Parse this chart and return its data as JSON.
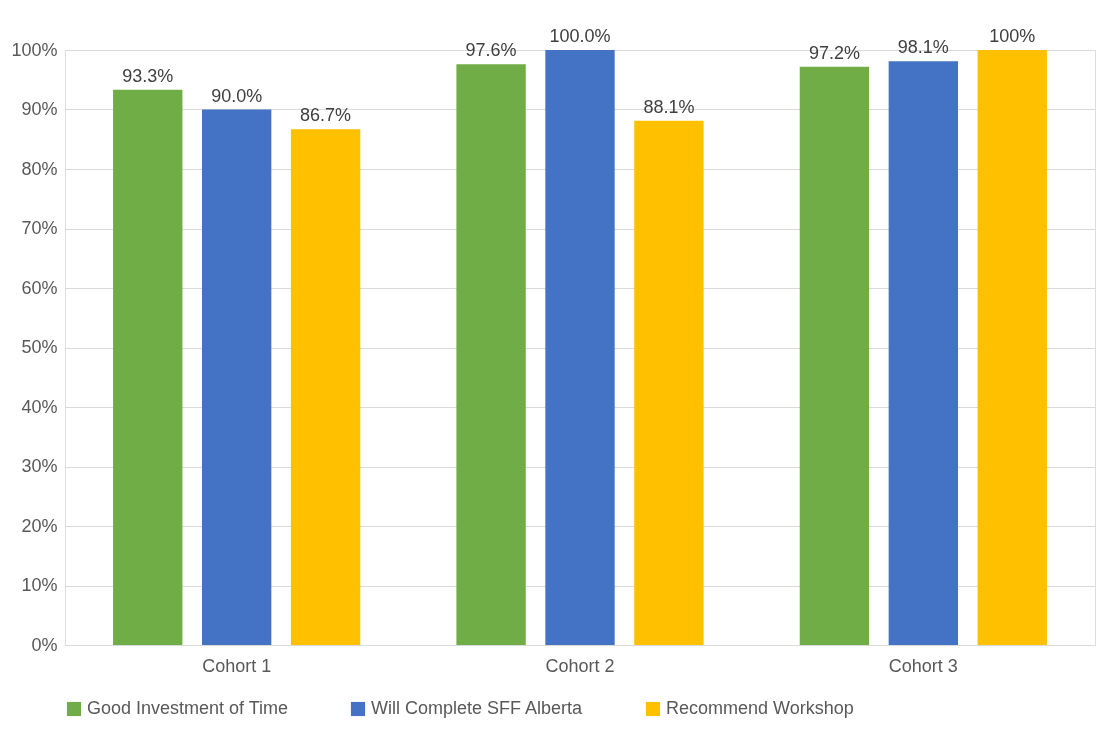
{
  "chart_data": {
    "type": "bar",
    "categories": [
      "Cohort 1",
      "Cohort 2",
      "Cohort 3"
    ],
    "series": [
      {
        "name": "Good Investment of Time",
        "color": "#70ad47",
        "values": [
          93.3,
          97.6,
          97.2
        ],
        "value_labels": [
          "93.3%",
          "97.6%",
          "97.2%"
        ]
      },
      {
        "name": "Will Complete SFF Alberta",
        "color": "#4472c4",
        "values": [
          90.0,
          100.0,
          98.1
        ],
        "value_labels": [
          "90.0%",
          "100.0%",
          "98.1%"
        ]
      },
      {
        "name": "Recommend Workshop",
        "color": "#ffc000",
        "values": [
          86.7,
          88.1,
          100
        ],
        "value_labels": [
          "86.7%",
          "88.1%",
          "100%"
        ]
      }
    ],
    "ylim": [
      0,
      100
    ],
    "yticks": [
      {
        "value": 0,
        "label": "0%"
      },
      {
        "value": 10,
        "label": "10%"
      },
      {
        "value": 20,
        "label": "20%"
      },
      {
        "value": 30,
        "label": "30%"
      },
      {
        "value": 40,
        "label": "40%"
      },
      {
        "value": 50,
        "label": "50%"
      },
      {
        "value": 60,
        "label": "60%"
      },
      {
        "value": 70,
        "label": "70%"
      },
      {
        "value": 80,
        "label": "80%"
      },
      {
        "value": 90,
        "label": "90%"
      },
      {
        "value": 100,
        "label": "100%"
      }
    ],
    "grid": "y",
    "legend": "bottom"
  }
}
